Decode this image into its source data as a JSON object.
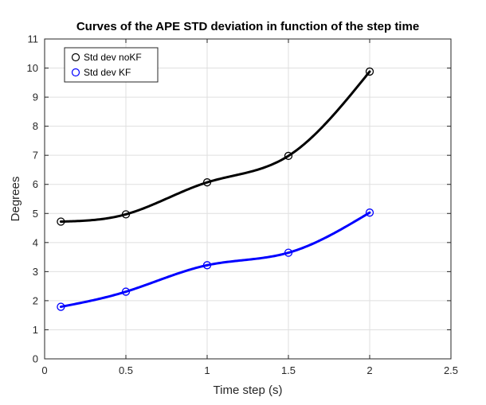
{
  "chart_data": {
    "type": "line",
    "title": "Curves of the APE STD deviation in function of the step time",
    "xlabel": "Time step (s)",
    "ylabel": "Degrees",
    "xlim": [
      0,
      2.5
    ],
    "ylim": [
      0,
      11
    ],
    "x_ticks": [
      "0",
      "0.5",
      "1",
      "1.5",
      "2",
      "2.5"
    ],
    "y_ticks": [
      "0",
      "1",
      "2",
      "3",
      "4",
      "5",
      "6",
      "7",
      "8",
      "9",
      "10",
      "11"
    ],
    "grid": true,
    "legend_position": "top-left",
    "x": [
      0.1,
      0.5,
      1.0,
      1.5,
      2.0
    ],
    "series": [
      {
        "name": "Std dev noKF",
        "color": "#000000",
        "marker": "circle",
        "values": [
          4.72,
          4.97,
          6.07,
          6.98,
          9.88
        ]
      },
      {
        "name": "Std dev KF",
        "color": "#0000ff",
        "marker": "circle",
        "values": [
          1.79,
          2.31,
          3.22,
          3.65,
          5.03
        ]
      }
    ]
  }
}
